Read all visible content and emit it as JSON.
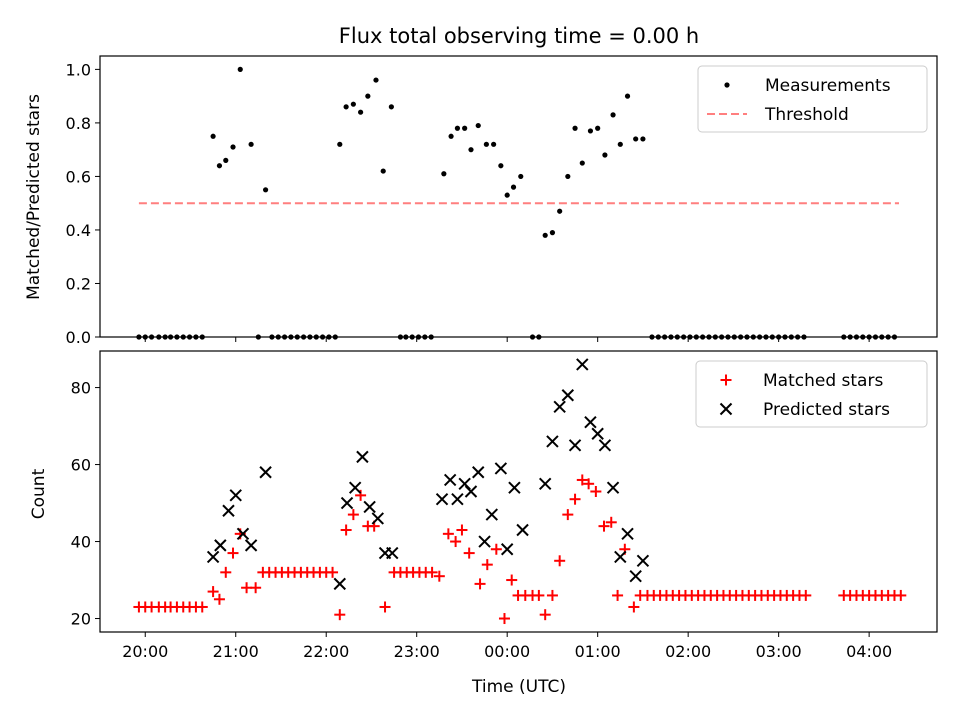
{
  "chart_data": [
    {
      "type": "scatter",
      "title": "Flux total observing time = 0.00 h",
      "ylabel": "Matched/Predicted stars",
      "ylim": [
        0,
        1.05
      ],
      "yticks": [
        "0.0",
        "0.2",
        "0.4",
        "0.6",
        "0.8",
        "1.0"
      ],
      "grid": false,
      "legend": "top-right",
      "threshold": {
        "name": "Threshold",
        "value": 0.5,
        "x_range": [
          19.93,
          4.33
        ],
        "color": "#ff7f7f"
      },
      "series": [
        {
          "name": "Measurements",
          "color": "#000000",
          "points": [
            [
              19.93,
              0
            ],
            [
              20.0,
              0
            ],
            [
              20.07,
              0
            ],
            [
              20.15,
              0
            ],
            [
              20.22,
              0
            ],
            [
              20.28,
              0
            ],
            [
              20.35,
              0
            ],
            [
              20.42,
              0
            ],
            [
              20.49,
              0
            ],
            [
              20.56,
              0
            ],
            [
              20.63,
              0
            ],
            [
              20.75,
              0.75
            ],
            [
              20.82,
              0.64
            ],
            [
              20.89,
              0.66
            ],
            [
              20.97,
              0.71
            ],
            [
              21.05,
              1.0
            ],
            [
              21.17,
              0.72
            ],
            [
              21.25,
              0
            ],
            [
              21.33,
              0.55
            ],
            [
              21.4,
              0
            ],
            [
              21.47,
              0
            ],
            [
              21.54,
              0
            ],
            [
              21.61,
              0
            ],
            [
              21.68,
              0
            ],
            [
              21.75,
              0
            ],
            [
              21.82,
              0
            ],
            [
              21.89,
              0
            ],
            [
              21.96,
              0
            ],
            [
              22.03,
              0
            ],
            [
              22.1,
              0
            ],
            [
              22.15,
              0.72
            ],
            [
              22.22,
              0.86
            ],
            [
              22.3,
              0.87
            ],
            [
              22.38,
              0.84
            ],
            [
              22.46,
              0.9
            ],
            [
              22.55,
              0.96
            ],
            [
              22.63,
              0.62
            ],
            [
              22.72,
              0.86
            ],
            [
              22.82,
              0
            ],
            [
              22.88,
              0
            ],
            [
              22.95,
              0
            ],
            [
              23.02,
              0
            ],
            [
              23.09,
              0
            ],
            [
              23.16,
              0
            ],
            [
              23.3,
              0.61
            ],
            [
              23.38,
              0.75
            ],
            [
              23.45,
              0.78
            ],
            [
              23.53,
              0.78
            ],
            [
              23.6,
              0.7
            ],
            [
              23.68,
              0.79
            ],
            [
              23.77,
              0.72
            ],
            [
              23.85,
              0.72
            ],
            [
              23.93,
              0.64
            ],
            [
              0.0,
              0.53
            ],
            [
              0.07,
              0.56
            ],
            [
              0.15,
              0.6
            ],
            [
              0.28,
              0
            ],
            [
              0.35,
              0
            ],
            [
              0.42,
              0.38
            ],
            [
              0.5,
              0.39
            ],
            [
              0.58,
              0.47
            ],
            [
              0.67,
              0.6
            ],
            [
              0.75,
              0.78
            ],
            [
              0.83,
              0.65
            ],
            [
              0.92,
              0.77
            ],
            [
              1.0,
              0.78
            ],
            [
              1.08,
              0.68
            ],
            [
              1.17,
              0.83
            ],
            [
              1.25,
              0.72
            ],
            [
              1.33,
              0.9
            ],
            [
              1.42,
              0.74
            ],
            [
              1.5,
              0.74
            ],
            [
              1.6,
              0
            ],
            [
              1.67,
              0
            ],
            [
              1.74,
              0
            ],
            [
              1.81,
              0
            ],
            [
              1.88,
              0
            ],
            [
              1.95,
              0
            ],
            [
              2.02,
              0
            ],
            [
              2.09,
              0
            ],
            [
              2.16,
              0
            ],
            [
              2.23,
              0
            ],
            [
              2.3,
              0
            ],
            [
              2.37,
              0
            ],
            [
              2.44,
              0
            ],
            [
              2.51,
              0
            ],
            [
              2.58,
              0
            ],
            [
              2.65,
              0
            ],
            [
              2.72,
              0
            ],
            [
              2.79,
              0
            ],
            [
              2.86,
              0
            ],
            [
              2.93,
              0
            ],
            [
              3.0,
              0
            ],
            [
              3.07,
              0
            ],
            [
              3.14,
              0
            ],
            [
              3.21,
              0
            ],
            [
              3.28,
              0
            ],
            [
              3.72,
              0
            ],
            [
              3.79,
              0
            ],
            [
              3.86,
              0
            ],
            [
              3.93,
              0
            ],
            [
              4.0,
              0
            ],
            [
              4.07,
              0
            ],
            [
              4.14,
              0
            ],
            [
              4.21,
              0
            ],
            [
              4.28,
              0
            ]
          ]
        }
      ]
    },
    {
      "type": "scatter",
      "xlabel": "Time (UTC)",
      "ylabel": "Count",
      "ylim": [
        16.5,
        89.5
      ],
      "yticks": [
        "20",
        "40",
        "60",
        "80"
      ],
      "xticks": [
        "20:00",
        "21:00",
        "22:00",
        "23:00",
        "00:00",
        "01:00",
        "02:00",
        "03:00",
        "04:00"
      ],
      "grid": false,
      "legend": "top-right",
      "series": [
        {
          "name": "Matched stars",
          "marker": "plus",
          "color": "#ff0000",
          "points": [
            [
              19.93,
              23
            ],
            [
              20.0,
              23
            ],
            [
              20.07,
              23
            ],
            [
              20.15,
              23
            ],
            [
              20.22,
              23
            ],
            [
              20.28,
              23
            ],
            [
              20.35,
              23
            ],
            [
              20.42,
              23
            ],
            [
              20.49,
              23
            ],
            [
              20.56,
              23
            ],
            [
              20.63,
              23
            ],
            [
              20.75,
              27
            ],
            [
              20.82,
              25
            ],
            [
              20.89,
              32
            ],
            [
              20.97,
              37
            ],
            [
              21.05,
              42
            ],
            [
              21.12,
              28
            ],
            [
              21.22,
              28
            ],
            [
              21.3,
              32
            ],
            [
              21.37,
              32
            ],
            [
              21.44,
              32
            ],
            [
              21.51,
              32
            ],
            [
              21.58,
              32
            ],
            [
              21.65,
              32
            ],
            [
              21.72,
              32
            ],
            [
              21.79,
              32
            ],
            [
              21.86,
              32
            ],
            [
              21.93,
              32
            ],
            [
              22.0,
              32
            ],
            [
              22.07,
              32
            ],
            [
              22.15,
              21
            ],
            [
              22.22,
              43
            ],
            [
              22.3,
              47
            ],
            [
              22.38,
              52
            ],
            [
              22.46,
              44
            ],
            [
              22.53,
              44
            ],
            [
              22.65,
              23
            ],
            [
              22.75,
              32
            ],
            [
              22.82,
              32
            ],
            [
              22.89,
              32
            ],
            [
              22.96,
              32
            ],
            [
              23.03,
              32
            ],
            [
              23.1,
              32
            ],
            [
              23.17,
              32
            ],
            [
              23.25,
              31
            ],
            [
              23.35,
              42
            ],
            [
              23.43,
              40
            ],
            [
              23.5,
              43
            ],
            [
              23.58,
              37
            ],
            [
              23.7,
              29
            ],
            [
              23.78,
              34
            ],
            [
              23.88,
              38
            ],
            [
              23.97,
              20
            ],
            [
              0.05,
              30
            ],
            [
              0.12,
              26
            ],
            [
              0.2,
              26
            ],
            [
              0.28,
              26
            ],
            [
              0.35,
              26
            ],
            [
              0.42,
              21
            ],
            [
              0.5,
              26
            ],
            [
              0.58,
              35
            ],
            [
              0.67,
              47
            ],
            [
              0.75,
              51
            ],
            [
              0.83,
              56
            ],
            [
              0.9,
              55
            ],
            [
              0.98,
              53
            ],
            [
              1.07,
              44
            ],
            [
              1.15,
              45
            ],
            [
              1.22,
              26
            ],
            [
              1.3,
              38
            ],
            [
              1.4,
              23
            ],
            [
              1.47,
              26
            ],
            [
              1.55,
              26
            ],
            [
              1.62,
              26
            ],
            [
              1.69,
              26
            ],
            [
              1.76,
              26
            ],
            [
              1.83,
              26
            ],
            [
              1.9,
              26
            ],
            [
              1.97,
              26
            ],
            [
              2.04,
              26
            ],
            [
              2.11,
              26
            ],
            [
              2.18,
              26
            ],
            [
              2.25,
              26
            ],
            [
              2.32,
              26
            ],
            [
              2.39,
              26
            ],
            [
              2.46,
              26
            ],
            [
              2.53,
              26
            ],
            [
              2.6,
              26
            ],
            [
              2.67,
              26
            ],
            [
              2.74,
              26
            ],
            [
              2.81,
              26
            ],
            [
              2.88,
              26
            ],
            [
              2.95,
              26
            ],
            [
              3.02,
              26
            ],
            [
              3.09,
              26
            ],
            [
              3.16,
              26
            ],
            [
              3.23,
              26
            ],
            [
              3.3,
              26
            ],
            [
              3.72,
              26
            ],
            [
              3.79,
              26
            ],
            [
              3.86,
              26
            ],
            [
              3.93,
              26
            ],
            [
              4.0,
              26
            ],
            [
              4.07,
              26
            ],
            [
              4.14,
              26
            ],
            [
              4.21,
              26
            ],
            [
              4.28,
              26
            ],
            [
              4.35,
              26
            ]
          ]
        },
        {
          "name": "Predicted stars",
          "marker": "x",
          "color": "#000000",
          "points": [
            [
              20.75,
              36
            ],
            [
              20.83,
              39
            ],
            [
              20.92,
              48
            ],
            [
              21.0,
              52
            ],
            [
              21.08,
              42
            ],
            [
              21.17,
              39
            ],
            [
              21.33,
              58
            ],
            [
              22.15,
              29
            ],
            [
              22.23,
              50
            ],
            [
              22.32,
              54
            ],
            [
              22.4,
              62
            ],
            [
              22.48,
              49
            ],
            [
              22.57,
              46
            ],
            [
              22.65,
              37
            ],
            [
              22.73,
              37
            ],
            [
              23.28,
              51
            ],
            [
              23.37,
              56
            ],
            [
              23.45,
              51
            ],
            [
              23.53,
              55
            ],
            [
              23.6,
              53
            ],
            [
              23.68,
              58
            ],
            [
              23.75,
              40
            ],
            [
              23.83,
              47
            ],
            [
              23.93,
              59
            ],
            [
              0.0,
              38
            ],
            [
              0.08,
              54
            ],
            [
              0.17,
              43
            ],
            [
              0.42,
              55
            ],
            [
              0.5,
              66
            ],
            [
              0.58,
              75
            ],
            [
              0.67,
              78
            ],
            [
              0.75,
              65
            ],
            [
              0.83,
              86
            ],
            [
              0.92,
              71
            ],
            [
              1.0,
              68
            ],
            [
              1.08,
              65
            ],
            [
              1.17,
              54
            ],
            [
              1.25,
              36
            ],
            [
              1.33,
              42
            ],
            [
              1.42,
              31
            ],
            [
              1.5,
              35
            ]
          ]
        }
      ]
    }
  ]
}
